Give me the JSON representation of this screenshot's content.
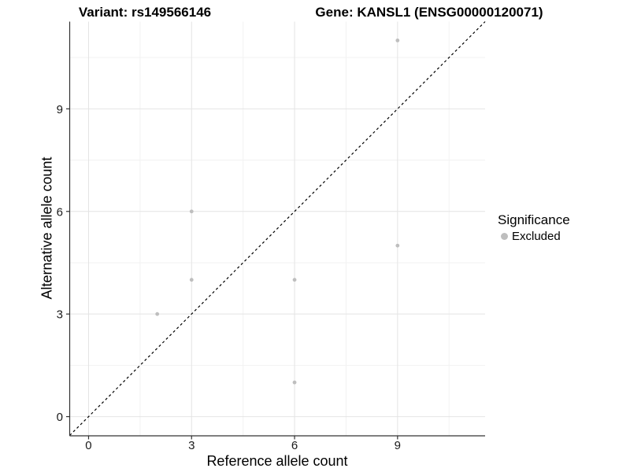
{
  "titles": {
    "variant": "Variant: rs149566146",
    "gene": "Gene: KANSL1 (ENSG00000120071)"
  },
  "chart_data": {
    "type": "scatter",
    "title": "Variant: rs149566146    Gene: KANSL1 (ENSG00000120071)",
    "xlabel": "Reference allele count",
    "ylabel": "Alternative allele count",
    "points": [
      {
        "x": 2,
        "y": 3
      },
      {
        "x": 3,
        "y": 4
      },
      {
        "x": 3,
        "y": 6
      },
      {
        "x": 6,
        "y": 1
      },
      {
        "x": 6,
        "y": 4
      },
      {
        "x": 9,
        "y": 5
      },
      {
        "x": 9,
        "y": 11
      }
    ],
    "xticks": [
      0,
      3,
      6,
      9
    ],
    "yticks": [
      0,
      3,
      6,
      9
    ],
    "minor_breaks": [
      1.5,
      4.5,
      7.5,
      10.5
    ],
    "xlim": [
      -0.55,
      11.55
    ],
    "ylim": [
      -0.55,
      11.55
    ],
    "grid": "major+minor",
    "identity_line": {
      "slope": 1,
      "intercept": 0,
      "style": "dashed",
      "color": "#000000"
    },
    "point_color": "#bebebe",
    "point_radius": 2.4,
    "grid_major_color": "#e4e4e4",
    "grid_minor_color": "#f2f2f2",
    "axis_color": "#333333",
    "tick_label_color": "#1a1a1a",
    "legend_position": "right",
    "legend": {
      "title": "Significance",
      "items": [
        {
          "label": "Excluded",
          "color": "#bebebe"
        }
      ]
    }
  }
}
